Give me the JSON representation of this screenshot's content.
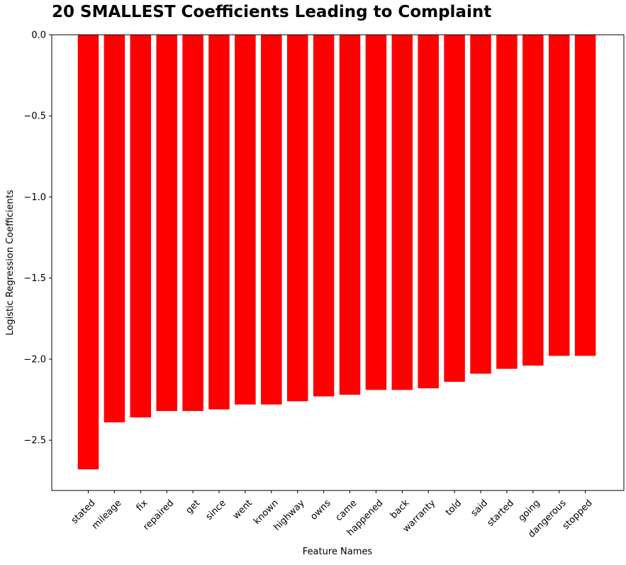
{
  "chart_data": {
    "type": "bar",
    "title": "20 SMALLEST Coefficients Leading to Complaint",
    "xlabel": "Feature Names",
    "ylabel": "Logistic Regression Coefficients",
    "categories": [
      "stated",
      "mileage",
      "fix",
      "repaired",
      "get",
      "since",
      "went",
      "known",
      "highway",
      "owns",
      "came",
      "happened",
      "back",
      "warranty",
      "told",
      "said",
      "started",
      "going",
      "dangerous",
      "stopped"
    ],
    "values": [
      -2.68,
      -2.39,
      -2.36,
      -2.32,
      -2.32,
      -2.31,
      -2.28,
      -2.28,
      -2.26,
      -2.23,
      -2.22,
      -2.19,
      -2.19,
      -2.18,
      -2.14,
      -2.09,
      -2.06,
      -2.04,
      -1.98,
      -1.98
    ],
    "yticks": [
      "0.0",
      "−0.5",
      "−1.0",
      "−1.5",
      "−2.0",
      "−2.5"
    ],
    "ytick_values": [
      0,
      -0.5,
      -1.0,
      -1.5,
      -2.0,
      -2.5
    ],
    "ylim": [
      -2.81,
      0.0
    ],
    "bar_color": "#ff0000",
    "grid": false
  }
}
